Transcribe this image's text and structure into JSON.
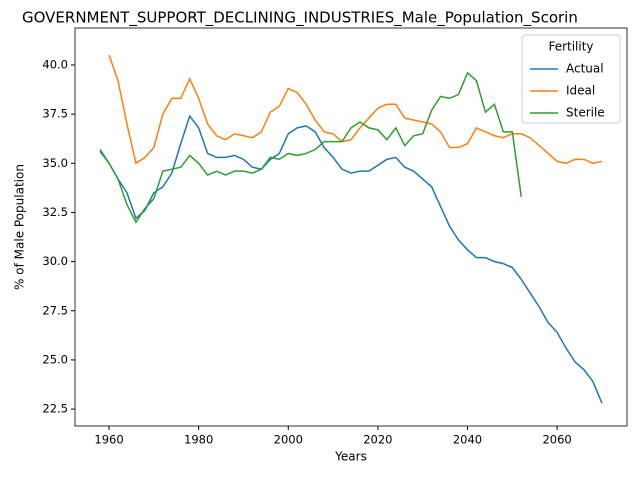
{
  "chart_data": {
    "type": "line",
    "title": "GOVERNMENT_SUPPORT_DECLINING_INDUSTRIES_Male_Population_Scorin",
    "x_label": "Years",
    "y_label": "% of Male Population",
    "x": [
      1958,
      1960,
      1962,
      1964,
      1966,
      1968,
      1970,
      1972,
      1974,
      1976,
      1978,
      1980,
      1982,
      1984,
      1986,
      1988,
      1990,
      1992,
      1994,
      1996,
      1998,
      2000,
      2002,
      2004,
      2006,
      2008,
      2010,
      2012,
      2014,
      2016,
      2018,
      2020,
      2022,
      2024,
      2026,
      2028,
      2030,
      2032,
      2034,
      2036,
      2038,
      2040,
      2042,
      2044,
      2046,
      2048,
      2050,
      2052,
      2054,
      2056,
      2058,
      2060,
      2062,
      2064,
      2066,
      2068,
      2070
    ],
    "series": [
      {
        "name": "Actual",
        "color": "#1f77b4",
        "values": [
          35.7,
          35.0,
          34.2,
          33.5,
          32.2,
          32.6,
          33.5,
          33.8,
          34.5,
          36.0,
          37.4,
          36.8,
          35.5,
          35.3,
          35.3,
          35.4,
          35.2,
          34.8,
          34.7,
          35.2,
          35.5,
          36.5,
          36.8,
          36.9,
          36.6,
          35.8,
          35.3,
          34.7,
          34.5,
          34.6,
          34.6,
          34.9,
          35.2,
          35.3,
          34.8,
          34.6,
          34.2,
          33.8,
          32.8,
          31.8,
          31.1,
          30.6,
          30.2,
          30.2,
          30.0,
          29.9,
          29.7,
          29.1,
          28.4,
          27.7,
          26.9,
          26.4,
          25.6,
          24.9,
          24.5,
          23.9,
          22.8
        ]
      },
      {
        "name": "Ideal",
        "color": "#ff7f0e",
        "values": [
          null,
          40.5,
          39.2,
          37.0,
          35.0,
          35.3,
          35.8,
          37.5,
          38.3,
          38.3,
          39.3,
          38.3,
          37.0,
          36.4,
          36.2,
          36.5,
          36.4,
          36.3,
          36.6,
          37.6,
          37.9,
          38.8,
          38.6,
          38.0,
          37.2,
          36.6,
          36.5,
          36.1,
          36.2,
          36.8,
          37.3,
          37.8,
          38.0,
          38.0,
          37.3,
          37.2,
          37.1,
          37.0,
          36.6,
          35.8,
          35.8,
          36.0,
          36.8,
          36.6,
          36.4,
          36.3,
          36.5,
          36.5,
          36.3,
          35.9,
          35.5,
          35.1,
          35.0,
          35.2,
          35.2,
          35.0,
          35.1
        ]
      },
      {
        "name": "Sterile",
        "color": "#2ca02c",
        "values": [
          35.6,
          35.0,
          34.2,
          32.9,
          32.0,
          32.7,
          33.2,
          34.6,
          34.7,
          34.8,
          35.4,
          35.0,
          34.4,
          34.6,
          34.4,
          34.6,
          34.6,
          34.5,
          34.7,
          35.3,
          35.2,
          35.5,
          35.4,
          35.5,
          35.7,
          36.1,
          36.1,
          36.1,
          36.8,
          37.1,
          36.8,
          36.7,
          36.2,
          36.8,
          35.9,
          36.4,
          36.5,
          37.7,
          38.4,
          38.3,
          38.5,
          39.6,
          39.2,
          37.6,
          38.0,
          36.6,
          36.6,
          33.3,
          null,
          null,
          null,
          null,
          null,
          null,
          null,
          null,
          null
        ]
      }
    ],
    "xlim": [
      1952.4,
      2075.6
    ],
    "ylim": [
      21.64,
      41.88
    ],
    "xticks": [
      1960,
      1980,
      2000,
      2020,
      2040,
      2060
    ],
    "yticks": [
      22.5,
      {
        "value": 25,
        "label": "25.0"
      },
      27.5,
      {
        "value": 30,
        "label": "30.0"
      },
      32.5,
      {
        "value": 35,
        "label": "35.0"
      },
      37.5,
      {
        "value": 40,
        "label": "40.0"
      }
    ],
    "legend_title": "Fertility",
    "legend_position": "upper right",
    "grid": false
  }
}
